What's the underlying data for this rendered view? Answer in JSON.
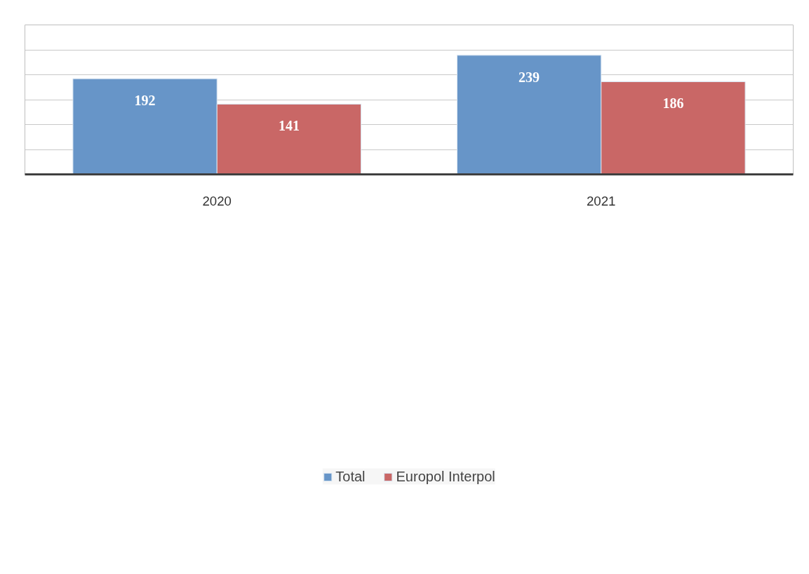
{
  "chart_data": {
    "type": "bar",
    "categories": [
      "2020",
      "2021"
    ],
    "series": [
      {
        "name": "Total",
        "color": "#6795c8",
        "values": [
          192,
          239
        ]
      },
      {
        "name": "Europol Interpol",
        "color": "#c96766",
        "values": [
          141,
          186
        ]
      }
    ],
    "ylim": [
      0,
      300
    ],
    "yticks": [
      {
        "value": 0,
        "label": null
      },
      {
        "value": 50,
        "label": null
      },
      {
        "value": 100,
        "label": null
      },
      {
        "value": 150,
        "label": null
      },
      {
        "value": 200,
        "label": null
      },
      {
        "value": 250,
        "label": null
      },
      {
        "value": 300,
        "label": null
      }
    ],
    "tick_labels": "x",
    "grid": "y",
    "legend": "bottom",
    "data_labels": true
  }
}
